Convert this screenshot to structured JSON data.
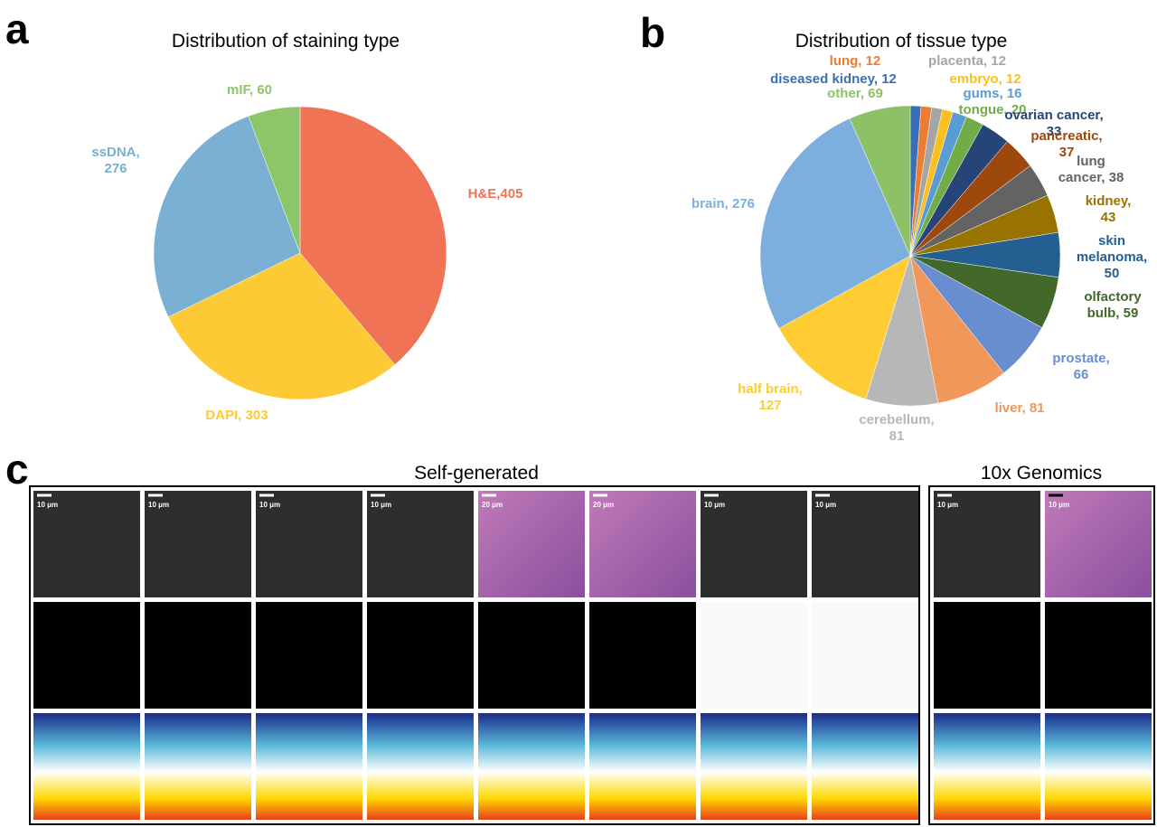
{
  "panels": {
    "a": "a",
    "b": "b",
    "c": "c"
  },
  "chart_data": [
    {
      "type": "pie",
      "title": "Distribution of staining type",
      "values": [
        405,
        303,
        276,
        60
      ],
      "value_labels": [
        "H&E,405",
        "DAPI, 303",
        "ssDNA,\n276",
        "mIF, 60"
      ],
      "colors": [
        "#f07355",
        "#fdc934",
        "#7ab0d3",
        "#8cc56a"
      ]
    },
    {
      "type": "pie",
      "title": "Distribution of tissue type",
      "values": [
        12,
        12,
        12,
        12,
        16,
        20,
        33,
        37,
        38,
        43,
        50,
        59,
        66,
        81,
        81,
        127,
        276,
        69
      ],
      "value_labels": [
        "diseased kidney, 12",
        "lung, 12",
        "placenta, 12",
        "embryo, 12",
        "gums, 16",
        "tongue, 20",
        "ovarian cancer, 33",
        "pancreatic, 37",
        "lung cancer, 38",
        "kidney, 43",
        "skin\nmelanoma,\n50",
        "olfactory\nbulb, 59",
        "prostate, 66",
        "liver, 81",
        "cerebellum,\n81",
        "half brain,\n127",
        "brain, 276",
        "other, 69"
      ],
      "colors": [
        "#3a6fb5",
        "#ec7c30",
        "#a5a5a5",
        "#fbbf1f",
        "#5b9bd5",
        "#70ad47",
        "#264478",
        "#9e480e",
        "#636363",
        "#997300",
        "#255e91",
        "#43682b",
        "#698ed0",
        "#f1975a",
        "#b7b7b7",
        "#ffcd33",
        "#7cafdd",
        "#8cc168"
      ]
    }
  ],
  "self_generated": {
    "title": "Self-generated",
    "scale_bars": [
      "10 μm",
      "10 μm",
      "10 μm",
      "10 μm",
      "20 μm",
      "20 μm",
      "10 μm",
      "10 μm"
    ]
  },
  "tenx": {
    "title": "10x Genomics",
    "scale_bars": [
      "10 μm",
      "10 μm"
    ]
  }
}
